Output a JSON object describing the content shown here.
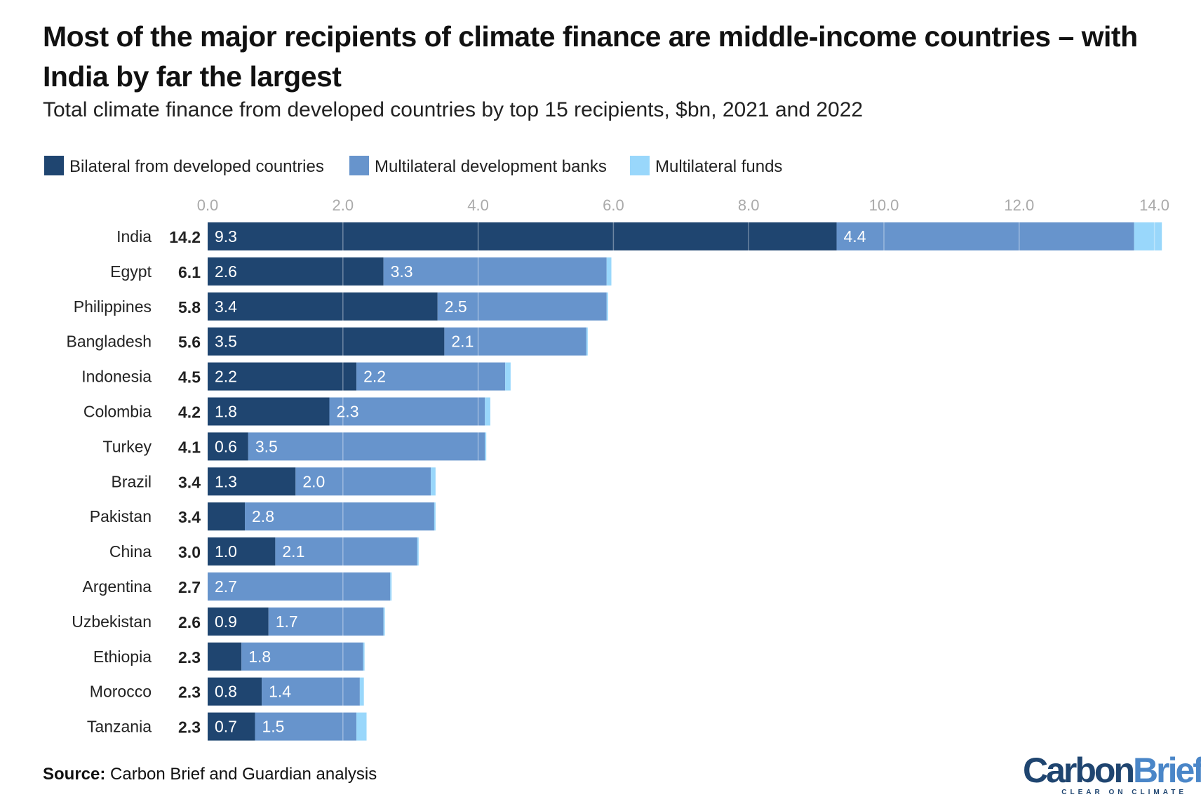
{
  "chart_data": {
    "type": "bar",
    "orientation": "horizontal",
    "stacked": true,
    "title": "Most of the major recipients of climate finance are middle-income countries – with India by far the largest",
    "subtitle": "Total climate finance from developed countries by top 15 recipients, $bn, 2021 and 2022",
    "categories": [
      "India",
      "Egypt",
      "Philippines",
      "Bangladesh",
      "Indonesia",
      "Colombia",
      "Turkey",
      "Brazil",
      "Pakistan",
      "China",
      "Argentina",
      "Uzbekistan",
      "Ethiopia",
      "Morocco",
      "Tanzania"
    ],
    "totals": [
      "14.2",
      "6.1",
      "5.8",
      "5.6",
      "4.5",
      "4.2",
      "4.1",
      "3.4",
      "3.4",
      "3.0",
      "2.7",
      "2.6",
      "2.3",
      "2.3",
      "2.3"
    ],
    "series": [
      {
        "name": "Bilateral from developed countries",
        "color": "#1f4570",
        "values": [
          9.3,
          2.6,
          3.4,
          3.5,
          2.2,
          1.8,
          0.6,
          1.3,
          0.55,
          1.0,
          0,
          0.9,
          0.5,
          0.8,
          0.7
        ],
        "labels": [
          "9.3",
          "2.6",
          "3.4",
          "3.5",
          "2.2",
          "1.8",
          "0.6",
          "1.3",
          "",
          "1.0",
          "",
          "0.9",
          "",
          "0.8",
          "0.7"
        ]
      },
      {
        "name": "Multilateral development banks",
        "color": "#6794cc",
        "values": [
          4.4,
          3.3,
          2.5,
          2.1,
          2.2,
          2.3,
          3.5,
          2.0,
          2.8,
          2.1,
          2.7,
          1.7,
          1.8,
          1.45,
          1.5
        ],
        "labels": [
          "4.4",
          "3.3",
          "2.5",
          "2.1",
          "2.2",
          "2.3",
          "3.5",
          "2.0",
          "2.8",
          "2.1",
          "2.7",
          "1.7",
          "1.8",
          "1.4",
          "1.5"
        ]
      },
      {
        "name": "Multilateral funds",
        "color": "#99d7fb",
        "values": [
          0.41,
          0.07,
          0.02,
          0.02,
          0.08,
          0.08,
          0.02,
          0.07,
          0.02,
          0.02,
          0.02,
          0.02,
          0.02,
          0.06,
          0.15
        ]
      }
    ],
    "xlim": [
      0,
      14.2
    ],
    "xticks": [
      "0.0",
      "2.0",
      "4.0",
      "6.0",
      "8.0",
      "10.0",
      "12.0",
      "14.0"
    ],
    "xtick_values": [
      0,
      2,
      4,
      6,
      8,
      10,
      12,
      14
    ],
    "grid": true,
    "legend": "top-left"
  },
  "source_label": "Source:",
  "source_text": "Carbon Brief and Guardian analysis",
  "logo": {
    "text": "CarbonBrief",
    "tagline": "CLEAR ON CLIMATE"
  }
}
